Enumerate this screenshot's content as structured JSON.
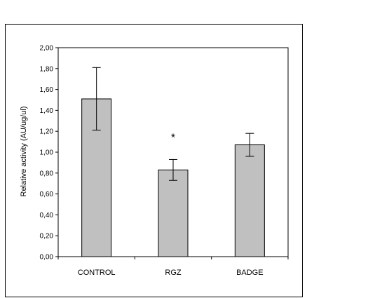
{
  "chart_data": {
    "type": "bar",
    "categories": [
      "CONTROL",
      "RGZ",
      "BADGE"
    ],
    "values": [
      1.51,
      0.83,
      1.07
    ],
    "errors": [
      0.3,
      0.1,
      0.11
    ],
    "annotations": [
      {
        "category": "RGZ",
        "text": "*"
      }
    ],
    "ylabel": "Relative activity (AU/ug/ul)",
    "xlabel": "",
    "ylim": [
      0,
      2.0
    ],
    "yticks": [
      "0,00",
      "0,20",
      "0,40",
      "0,60",
      "0,80",
      "1,00",
      "1,20",
      "1,40",
      "1,60",
      "1,80",
      "2,00"
    ],
    "grid": false,
    "bar_color": "#c0c0c0",
    "edge_color": "#000000"
  }
}
